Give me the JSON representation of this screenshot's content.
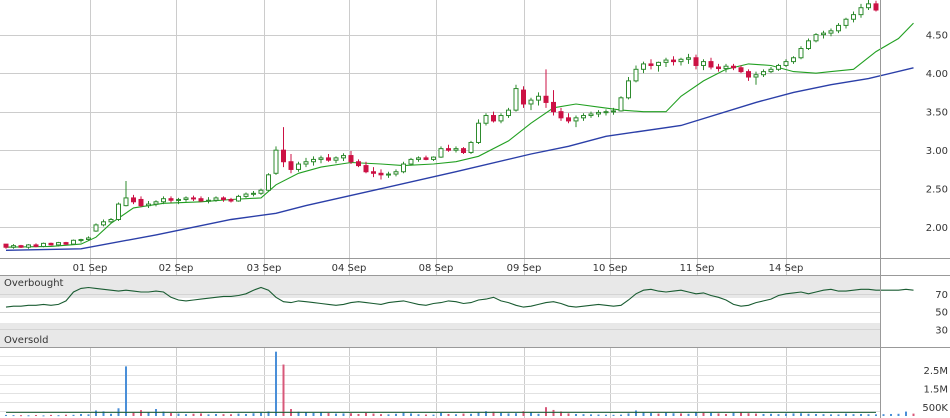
{
  "chart_data": [
    {
      "type": "candlestick",
      "panel": "price",
      "x_labels": [
        "01 Sep",
        "02 Sep",
        "03 Sep",
        "04 Sep",
        "08 Sep",
        "09 Sep",
        "10 Sep",
        "11 Sep",
        "14 Sep"
      ],
      "y_ticks": [
        "2.00",
        "2.50",
        "3.00",
        "3.50",
        "4.00",
        "4.50"
      ],
      "y_tick_values": [
        2.0,
        2.5,
        3.0,
        3.5,
        4.0,
        4.5
      ],
      "ylim": [
        1.6,
        4.95
      ],
      "grid": true,
      "colors": {
        "up": "#2e8b2e",
        "down": "#cc1144",
        "ma_short": "#22a022",
        "ma_long": "#2b3fa8",
        "grid": "#cccccc"
      },
      "series": [
        {
          "type": "ma_short",
          "points": [
            [
              0,
              1.74
            ],
            [
              6,
              1.75
            ],
            [
              10,
              1.78
            ],
            [
              12,
              1.87
            ],
            [
              14,
              2.05
            ],
            [
              17,
              2.25
            ],
            [
              21,
              2.31
            ],
            [
              26,
              2.33
            ],
            [
              30,
              2.36
            ],
            [
              34,
              2.38
            ],
            [
              36,
              2.55
            ],
            [
              39,
              2.7
            ],
            [
              42,
              2.78
            ],
            [
              46,
              2.84
            ],
            [
              50,
              2.82
            ],
            [
              53,
              2.8
            ],
            [
              57,
              2.82
            ],
            [
              60,
              2.85
            ],
            [
              63,
              2.92
            ],
            [
              67,
              3.12
            ],
            [
              70,
              3.35
            ],
            [
              73,
              3.55
            ],
            [
              76,
              3.6
            ],
            [
              79,
              3.56
            ],
            [
              82,
              3.52
            ],
            [
              85,
              3.5
            ],
            [
              88,
              3.5
            ],
            [
              90,
              3.7
            ],
            [
              93,
              3.9
            ],
            [
              96,
              4.05
            ],
            [
              99,
              4.12
            ],
            [
              102,
              4.1
            ],
            [
              105,
              4.02
            ],
            [
              108,
              4.0
            ],
            [
              110,
              4.02
            ],
            [
              113,
              4.05
            ],
            [
              116,
              4.28
            ],
            [
              119,
              4.45
            ],
            [
              121,
              4.65
            ]
          ]
        },
        {
          "type": "ma_long",
          "points": [
            [
              0,
              1.7
            ],
            [
              10,
              1.72
            ],
            [
              20,
              1.9
            ],
            [
              30,
              2.1
            ],
            [
              36,
              2.18
            ],
            [
              40,
              2.28
            ],
            [
              50,
              2.5
            ],
            [
              60,
              2.72
            ],
            [
              70,
              2.95
            ],
            [
              75,
              3.05
            ],
            [
              80,
              3.18
            ],
            [
              90,
              3.32
            ],
            [
              100,
              3.62
            ],
            [
              105,
              3.75
            ],
            [
              110,
              3.85
            ],
            [
              115,
              3.93
            ],
            [
              121,
              4.07
            ]
          ]
        }
      ],
      "candles": [
        [
          1.78,
          1.78,
          1.72,
          1.74
        ],
        [
          1.74,
          1.78,
          1.72,
          1.76
        ],
        [
          1.76,
          1.77,
          1.73,
          1.74
        ],
        [
          1.74,
          1.78,
          1.72,
          1.77
        ],
        [
          1.77,
          1.79,
          1.74,
          1.75
        ],
        [
          1.75,
          1.8,
          1.74,
          1.79
        ],
        [
          1.79,
          1.8,
          1.76,
          1.77
        ],
        [
          1.77,
          1.81,
          1.75,
          1.8
        ],
        [
          1.8,
          1.81,
          1.77,
          1.78
        ],
        [
          1.78,
          1.84,
          1.77,
          1.83
        ],
        [
          1.83,
          1.85,
          1.8,
          1.84
        ],
        [
          1.84,
          1.88,
          1.82,
          1.86
        ],
        [
          1.95,
          2.05,
          1.94,
          2.03
        ],
        [
          2.03,
          2.1,
          2.01,
          2.07
        ],
        [
          2.07,
          2.12,
          2.05,
          2.1
        ],
        [
          2.1,
          2.32,
          2.08,
          2.3
        ],
        [
          2.28,
          2.6,
          2.27,
          2.38
        ],
        [
          2.38,
          2.42,
          2.3,
          2.33
        ],
        [
          2.36,
          2.4,
          2.26,
          2.28
        ],
        [
          2.28,
          2.34,
          2.25,
          2.3
        ],
        [
          2.3,
          2.35,
          2.27,
          2.33
        ],
        [
          2.33,
          2.4,
          2.3,
          2.37
        ],
        [
          2.37,
          2.4,
          2.32,
          2.35
        ],
        [
          2.35,
          2.38,
          2.3,
          2.36
        ],
        [
          2.36,
          2.4,
          2.33,
          2.38
        ],
        [
          2.38,
          2.41,
          2.34,
          2.37
        ],
        [
          2.37,
          2.4,
          2.33,
          2.34
        ],
        [
          2.34,
          2.39,
          2.31,
          2.35
        ],
        [
          2.35,
          2.4,
          2.33,
          2.38
        ],
        [
          2.38,
          2.4,
          2.33,
          2.36
        ],
        [
          2.36,
          2.38,
          2.32,
          2.34
        ],
        [
          2.34,
          2.42,
          2.33,
          2.4
        ],
        [
          2.4,
          2.45,
          2.38,
          2.43
        ],
        [
          2.43,
          2.47,
          2.4,
          2.44
        ],
        [
          2.44,
          2.5,
          2.42,
          2.48
        ],
        [
          2.48,
          2.7,
          2.47,
          2.68
        ],
        [
          2.7,
          3.05,
          2.68,
          3.0
        ],
        [
          3.0,
          3.3,
          2.78,
          2.85
        ],
        [
          2.85,
          2.95,
          2.7,
          2.75
        ],
        [
          2.75,
          2.85,
          2.72,
          2.82
        ],
        [
          2.82,
          2.9,
          2.78,
          2.85
        ],
        [
          2.85,
          2.92,
          2.8,
          2.88
        ],
        [
          2.88,
          2.93,
          2.83,
          2.9
        ],
        [
          2.9,
          2.95,
          2.85,
          2.87
        ],
        [
          2.87,
          2.92,
          2.83,
          2.9
        ],
        [
          2.9,
          2.96,
          2.86,
          2.93
        ],
        [
          2.93,
          2.99,
          2.82,
          2.85
        ],
        [
          2.85,
          2.88,
          2.78,
          2.8
        ],
        [
          2.8,
          2.85,
          2.7,
          2.72
        ],
        [
          2.72,
          2.78,
          2.65,
          2.7
        ],
        [
          2.7,
          2.75,
          2.62,
          2.68
        ],
        [
          2.68,
          2.72,
          2.64,
          2.69
        ],
        [
          2.69,
          2.75,
          2.66,
          2.72
        ],
        [
          2.72,
          2.85,
          2.7,
          2.82
        ],
        [
          2.82,
          2.9,
          2.8,
          2.88
        ],
        [
          2.88,
          2.92,
          2.85,
          2.9
        ],
        [
          2.9,
          2.93,
          2.87,
          2.88
        ],
        [
          2.88,
          2.92,
          2.86,
          2.91
        ],
        [
          2.91,
          3.05,
          2.9,
          3.02
        ],
        [
          3.02,
          3.07,
          2.98,
          3.0
        ],
        [
          3.0,
          3.05,
          2.97,
          3.02
        ],
        [
          3.02,
          3.04,
          2.95,
          2.97
        ],
        [
          2.97,
          3.12,
          2.95,
          3.1
        ],
        [
          3.1,
          3.4,
          3.08,
          3.35
        ],
        [
          3.35,
          3.48,
          3.32,
          3.45
        ],
        [
          3.45,
          3.5,
          3.36,
          3.38
        ],
        [
          3.38,
          3.48,
          3.35,
          3.45
        ],
        [
          3.45,
          3.55,
          3.42,
          3.52
        ],
        [
          3.52,
          3.85,
          3.5,
          3.8
        ],
        [
          3.78,
          3.83,
          3.55,
          3.6
        ],
        [
          3.6,
          3.68,
          3.52,
          3.65
        ],
        [
          3.65,
          3.75,
          3.58,
          3.7
        ],
        [
          3.7,
          4.05,
          3.55,
          3.62
        ],
        [
          3.62,
          3.78,
          3.45,
          3.5
        ],
        [
          3.5,
          3.55,
          3.38,
          3.42
        ],
        [
          3.42,
          3.48,
          3.35,
          3.38
        ],
        [
          3.38,
          3.45,
          3.3,
          3.42
        ],
        [
          3.42,
          3.48,
          3.38,
          3.45
        ],
        [
          3.45,
          3.5,
          3.42,
          3.47
        ],
        [
          3.47,
          3.52,
          3.43,
          3.49
        ],
        [
          3.49,
          3.53,
          3.45,
          3.5
        ],
        [
          3.5,
          3.55,
          3.46,
          3.51
        ],
        [
          3.51,
          3.7,
          3.5,
          3.68
        ],
        [
          3.68,
          3.95,
          3.66,
          3.9
        ],
        [
          3.9,
          4.1,
          3.88,
          4.05
        ],
        [
          4.05,
          4.15,
          4.0,
          4.12
        ],
        [
          4.12,
          4.18,
          4.05,
          4.1
        ],
        [
          4.1,
          4.15,
          4.02,
          4.14
        ],
        [
          4.14,
          4.2,
          4.08,
          4.17
        ],
        [
          4.17,
          4.22,
          4.1,
          4.15
        ],
        [
          4.15,
          4.2,
          4.1,
          4.18
        ],
        [
          4.18,
          4.25,
          4.12,
          4.2
        ],
        [
          4.2,
          4.24,
          4.05,
          4.1
        ],
        [
          4.1,
          4.18,
          4.04,
          4.15
        ],
        [
          4.15,
          4.2,
          4.05,
          4.08
        ],
        [
          4.08,
          4.12,
          4.02,
          4.06
        ],
        [
          4.06,
          4.12,
          4.01,
          4.09
        ],
        [
          4.09,
          4.12,
          4.04,
          4.07
        ],
        [
          4.07,
          4.1,
          4.0,
          4.02
        ],
        [
          4.02,
          4.05,
          3.9,
          3.95
        ],
        [
          3.95,
          4.02,
          3.85,
          3.98
        ],
        [
          3.98,
          4.05,
          3.95,
          4.02
        ],
        [
          4.02,
          4.08,
          4.0,
          4.05
        ],
        [
          4.05,
          4.12,
          4.03,
          4.1
        ],
        [
          4.1,
          4.18,
          4.08,
          4.15
        ],
        [
          4.15,
          4.22,
          4.12,
          4.2
        ],
        [
          4.2,
          4.35,
          4.18,
          4.32
        ],
        [
          4.32,
          4.45,
          4.3,
          4.42
        ],
        [
          4.42,
          4.52,
          4.4,
          4.5
        ],
        [
          4.5,
          4.55,
          4.45,
          4.52
        ],
        [
          4.52,
          4.58,
          4.48,
          4.55
        ],
        [
          4.55,
          4.65,
          4.52,
          4.62
        ],
        [
          4.62,
          4.72,
          4.58,
          4.7
        ],
        [
          4.7,
          4.8,
          4.66,
          4.76
        ],
        [
          4.76,
          4.9,
          4.72,
          4.85
        ],
        [
          4.85,
          4.95,
          4.82,
          4.9
        ],
        [
          4.9,
          4.94,
          4.8,
          4.82
        ]
      ]
    },
    {
      "type": "line",
      "panel": "oscillator",
      "band_labels": {
        "upper": "Overbought",
        "lower": "Oversold"
      },
      "y_ticks": [
        "70",
        "50",
        "30"
      ],
      "y_tick_values": [
        70,
        50,
        30
      ],
      "ylim": [
        10,
        90
      ],
      "values": [
        55,
        56,
        56,
        57,
        57,
        58,
        57,
        58,
        62,
        72,
        76,
        77,
        76,
        75,
        74,
        73,
        74,
        73,
        72,
        72,
        73,
        72,
        66,
        63,
        62,
        63,
        64,
        65,
        66,
        67,
        67,
        68,
        70,
        74,
        77,
        74,
        66,
        61,
        60,
        62,
        61,
        60,
        59,
        58,
        57,
        58,
        60,
        61,
        60,
        59,
        58,
        60,
        61,
        62,
        60,
        58,
        57,
        59,
        60,
        62,
        61,
        59,
        60,
        63,
        64,
        66,
        62,
        60,
        57,
        55,
        56,
        58,
        60,
        61,
        59,
        56,
        55,
        56,
        57,
        58,
        57,
        56,
        57,
        63,
        70,
        74,
        75,
        73,
        72,
        73,
        74,
        72,
        70,
        71,
        68,
        66,
        63,
        58,
        56,
        57,
        60,
        62,
        64,
        68,
        70,
        71,
        72,
        70,
        72,
        74,
        75,
        73,
        73,
        74,
        75,
        75,
        74,
        74,
        74,
        74,
        75,
        74
      ],
      "color": "#1a5c32"
    },
    {
      "type": "bar",
      "panel": "volume",
      "y_ticks": [
        "2.5M",
        "1.5M",
        "500K"
      ],
      "y_tick_values": [
        2500000,
        1500000,
        500000
      ],
      "ylim": [
        0,
        3700000
      ],
      "colors": {
        "up": "#4a8fd8",
        "down": "#d8587a",
        "ma": "#1a5c32"
      },
      "values": [
        60000,
        50000,
        45000,
        40000,
        55000,
        35000,
        60000,
        45000,
        70000,
        65000,
        110000,
        90000,
        300000,
        250000,
        120000,
        420000,
        2700000,
        180000,
        320000,
        200000,
        380000,
        240000,
        160000,
        130000,
        100000,
        120000,
        140000,
        90000,
        110000,
        100000,
        95000,
        130000,
        110000,
        150000,
        170000,
        250000,
        3500000,
        2800000,
        380000,
        230000,
        210000,
        170000,
        190000,
        160000,
        130000,
        140000,
        150000,
        110000,
        170000,
        130000,
        100000,
        90000,
        120000,
        180000,
        140000,
        95000,
        80000,
        75000,
        170000,
        110000,
        95000,
        130000,
        120000,
        180000,
        260000,
        230000,
        170000,
        140000,
        150000,
        260000,
        210000,
        120000,
        480000,
        330000,
        240000,
        140000,
        110000,
        100000,
        90000,
        80000,
        70000,
        65000,
        75000,
        140000,
        300000,
        190000,
        160000,
        130000,
        180000,
        150000,
        140000,
        120000,
        220000,
        180000,
        170000,
        140000,
        110000,
        180000,
        200000,
        150000,
        130000,
        110000,
        120000,
        100000,
        130000,
        140000,
        150000,
        120000,
        110000,
        100000,
        90000,
        85000,
        130000,
        100000,
        110000,
        95000,
        90000,
        100000,
        110000,
        120000,
        240000,
        130000
      ],
      "up": [
        1,
        1,
        0,
        1,
        0,
        1,
        0,
        1,
        0,
        1,
        1,
        1,
        1,
        1,
        1,
        1,
        1,
        0,
        0,
        1,
        1,
        1,
        0,
        1,
        1,
        0,
        0,
        1,
        1,
        0,
        0,
        1,
        1,
        1,
        1,
        1,
        1,
        0,
        0,
        1,
        1,
        1,
        1,
        0,
        1,
        1,
        0,
        0,
        0,
        0,
        0,
        1,
        1,
        1,
        1,
        1,
        0,
        1,
        1,
        0,
        1,
        0,
        1,
        1,
        1,
        0,
        1,
        1,
        1,
        0,
        1,
        1,
        0,
        0,
        0,
        0,
        1,
        1,
        1,
        1,
        1,
        1,
        1,
        1,
        1,
        1,
        1,
        0,
        1,
        1,
        0,
        1,
        1,
        0,
        1,
        0,
        0,
        1,
        0,
        0,
        0,
        1,
        1,
        1,
        1,
        1,
        1,
        1,
        1,
        1,
        1,
        1,
        1,
        1,
        1,
        1,
        1,
        1,
        1,
        1,
        1,
        0
      ],
      "ma_level": 200000
    }
  ]
}
